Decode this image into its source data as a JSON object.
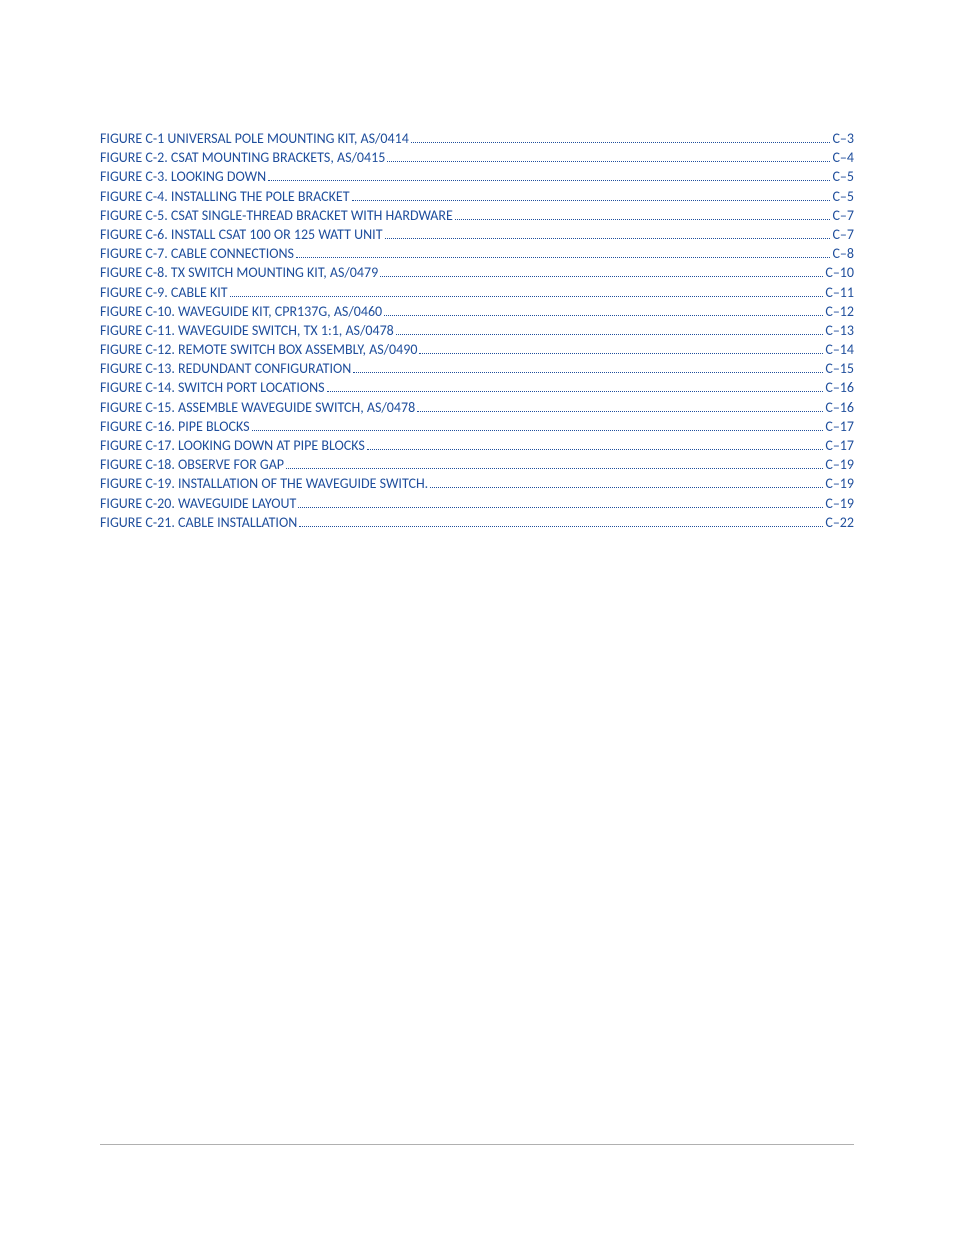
{
  "colors": {
    "link": "#1f4e9c",
    "footer_line": "#b0b0b0",
    "background": "#ffffff"
  },
  "typography": {
    "font_family": "Calibri, 'Segoe UI', Arial, sans-serif",
    "font_size_pt": 10.5,
    "line_height": 1.3,
    "text_transform": "uppercase"
  },
  "toc": [
    {
      "label": "FIGURE C-1  UNIVERSAL POLE MOUNTING KIT, AS/0414",
      "page": "C–3"
    },
    {
      "label": "FIGURE C-2.  CSAT MOUNTING BRACKETS, AS/0415",
      "page": "C–4"
    },
    {
      "label": "FIGURE C-3.  LOOKING DOWN",
      "page": "C–5"
    },
    {
      "label": "FIGURE C-4.  INSTALLING THE POLE BRACKET",
      "page": "C–5"
    },
    {
      "label": "FIGURE C-5.  CSAT SINGLE-THREAD BRACKET  WITH HARDWARE",
      "page": "C–7"
    },
    {
      "label": "FIGURE C-6. INSTALL CSAT 100 OR 125 WATT UNIT",
      "page": "C–7"
    },
    {
      "label": "FIGURE C-7.  CABLE CONNECTIONS",
      "page": "C–8"
    },
    {
      "label": "FIGURE C-8.  TX SWITCH MOUNTING KIT, AS/0479",
      "page": "C–10"
    },
    {
      "label": "FIGURE C-9.  CABLE KIT",
      "page": "C–11"
    },
    {
      "label": "FIGURE C-10.  WAVEGUIDE KIT, CPR137G, AS/0460",
      "page": "C–12"
    },
    {
      "label": "FIGURE C-11.  WAVEGUIDE SWITCH, TX 1:1, AS/0478",
      "page": "C–13"
    },
    {
      "label": "FIGURE C-12.    REMOTE SWITCH BOX ASSEMBLY, AS/0490",
      "page": "C–14"
    },
    {
      "label": "FIGURE C-13.  REDUNDANT CONFIGURATION",
      "page": "C–15"
    },
    {
      "label": "FIGURE C-14. SWITCH PORT LOCATIONS",
      "page": "C–16"
    },
    {
      "label": "FIGURE C-15.  ASSEMBLE WAVEGUIDE SWITCH, AS/0478",
      "page": "C–16"
    },
    {
      "label": "FIGURE C-16.  PIPE BLOCKS",
      "page": "C–17"
    },
    {
      "label": "FIGURE C-17. LOOKING DOWN AT PIPE BLOCKS",
      "page": "C–17"
    },
    {
      "label": "FIGURE C-18. OBSERVE FOR GAP",
      "page": "C–19"
    },
    {
      "label": "FIGURE C-19. INSTALLATION OF THE WAVEGUIDE SWITCH.",
      "page": "C–19"
    },
    {
      "label": "FIGURE C-20.  WAVEGUIDE LAYOUT",
      "page": "C–19"
    },
    {
      "label": "FIGURE C-21.  CABLE INSTALLATION",
      "page": "C–22"
    }
  ]
}
